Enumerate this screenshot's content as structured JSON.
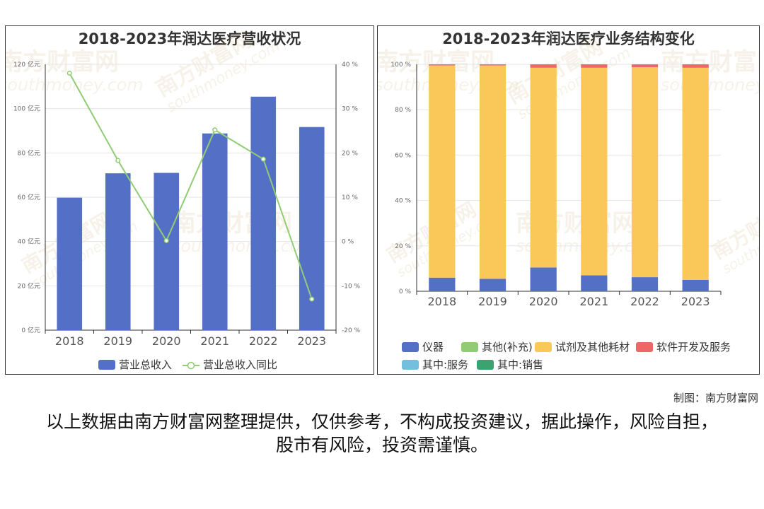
{
  "footer": {
    "credit": "制图：南方财富网",
    "disclaimer": "以上数据由南方财富网整理提供，仅供参考，不构成投资建议，据此操作，风险自担，股市有风险，投资需谨慎。"
  },
  "watermark_text": "南方财富网",
  "watermark_sub": "southmoney.com",
  "chart_data": [
    {
      "type": "bar",
      "title": "2018-2023年润达医疗营收状况",
      "categories": [
        "2018",
        "2019",
        "2020",
        "2021",
        "2022",
        "2023"
      ],
      "y_ticks": [
        "0 亿元",
        "20 亿元",
        "40 亿元",
        "60 亿元",
        "80 亿元",
        "100 亿元",
        "120 亿元"
      ],
      "y2_ticks": [
        "-20 %",
        "-10 %",
        "0 %",
        "10 %",
        "20 %",
        "30 %",
        "40 %"
      ],
      "ylim": [
        0,
        120
      ],
      "y2lim": [
        -20,
        40
      ],
      "series": [
        {
          "name": "营业总收入",
          "kind": "bar",
          "color": "#5470c6",
          "values": [
            59.8,
            70.8,
            71.0,
            88.8,
            105.4,
            91.7
          ]
        },
        {
          "name": "营业总收入同比",
          "kind": "line",
          "color": "#91cc75",
          "values": [
            38.0,
            18.3,
            0.2,
            25.2,
            18.6,
            -13.0
          ]
        }
      ],
      "legend_position": "bottom-center",
      "grid": true
    },
    {
      "type": "bar",
      "stacked": true,
      "title": "2018-2023年润达医疗业务结构变化",
      "categories": [
        "2018",
        "2019",
        "2020",
        "2021",
        "2022",
        "2023"
      ],
      "y_ticks": [
        "0 %",
        "20 %",
        "40 %",
        "60 %",
        "80 %",
        "100 %"
      ],
      "ylim": [
        0,
        100
      ],
      "series": [
        {
          "name": "仪器",
          "color": "#5470c6",
          "values": [
            6.0,
            5.5,
            10.5,
            7.0,
            6.2,
            5.0
          ]
        },
        {
          "name": "其他(补充)",
          "color": "#91cc75",
          "values": [
            0,
            0,
            0,
            0,
            0,
            0
          ]
        },
        {
          "name": "试剂及其他耗材",
          "color": "#fac858",
          "values": [
            93.5,
            94.0,
            88.0,
            91.5,
            92.5,
            93.5
          ]
        },
        {
          "name": "软件开发及服务",
          "color": "#ee6666",
          "values": [
            0.5,
            0.5,
            1.5,
            1.5,
            1.3,
            1.5
          ]
        },
        {
          "name": "其中:服务",
          "color": "#73c0de",
          "values": [
            0,
            0,
            0,
            0,
            0,
            0
          ]
        },
        {
          "name": "其中:销售",
          "color": "#3ba272",
          "values": [
            0,
            0,
            0,
            0,
            0,
            0
          ]
        }
      ],
      "legend_position": "bottom",
      "grid": true
    }
  ]
}
